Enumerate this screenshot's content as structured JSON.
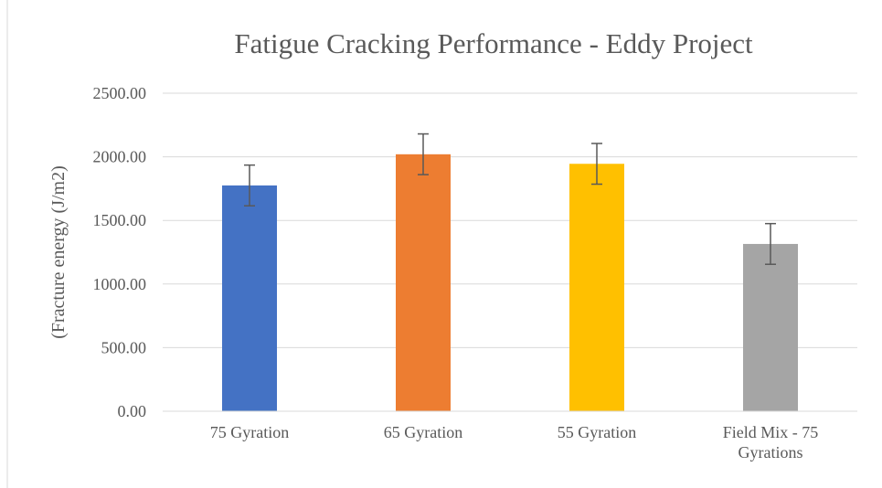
{
  "chart_data": {
    "type": "bar",
    "title": "Fatigue Cracking Performance -  Eddy Project",
    "ylabel": "(Fracture energy (J/m2)",
    "categories": [
      "75 Gyration",
      "65 Gyration",
      "55 Gyration",
      "Field Mix - 75 Gyrations"
    ],
    "values": [
      1775,
      2020,
      1945,
      1315
    ],
    "errors": [
      160,
      160,
      160,
      160
    ],
    "colors": [
      "#4472c4",
      "#ed7d31",
      "#ffc000",
      "#a5a5a5"
    ],
    "ylim": [
      0,
      2500
    ],
    "yticks": [
      {
        "value": 0,
        "label": "0.00"
      },
      {
        "value": 500,
        "label": "500.00"
      },
      {
        "value": 1000,
        "label": "1000.00"
      },
      {
        "value": 1500,
        "label": "1500.00"
      },
      {
        "value": 2000,
        "label": "2000.00"
      },
      {
        "value": 2500,
        "label": "2500.00"
      }
    ],
    "grid": true
  }
}
